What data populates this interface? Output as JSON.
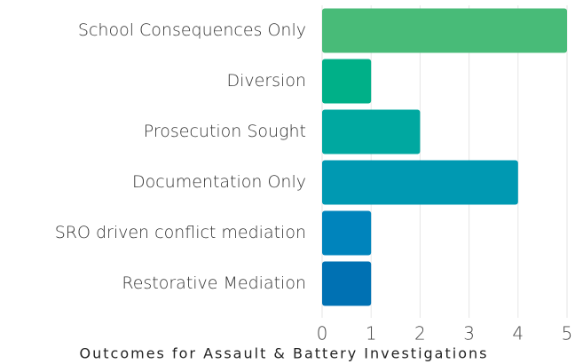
{
  "chart_data": {
    "type": "bar",
    "orientation": "horizontal",
    "title": "Outcomes for Assault & Battery Investigations",
    "categories": [
      "School Consequences Only",
      "Diversion",
      "Prosecution Sought",
      "Documentation Only",
      "SRO driven conflict mediation",
      "Restorative Mediation"
    ],
    "values": [
      5,
      1,
      2,
      4,
      1,
      1
    ],
    "colors": [
      "#48bb78",
      "#00b088",
      "#00a8a0",
      "#0099b2",
      "#0084bc",
      "#0071b3"
    ],
    "xlim": [
      0,
      5
    ],
    "xticks": [
      0,
      1,
      2,
      3,
      4,
      5
    ],
    "grid": true
  }
}
